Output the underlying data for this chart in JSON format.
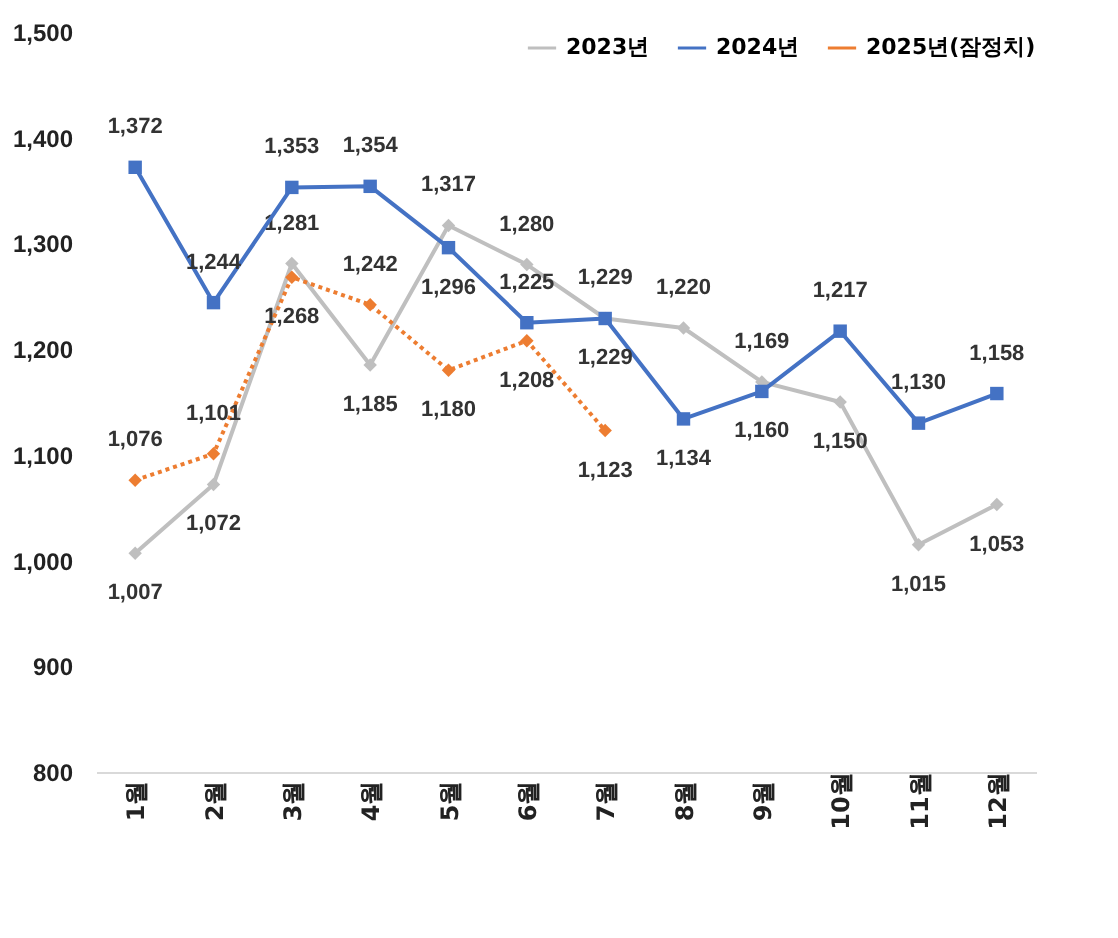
{
  "chart_data": {
    "type": "line",
    "categories": [
      "1월",
      "2월",
      "3월",
      "4월",
      "5월",
      "6월",
      "7월",
      "8월",
      "9월",
      "10월",
      "11월",
      "12월"
    ],
    "series": [
      {
        "name": "2023년",
        "color": "#bfbfbf",
        "marker": "diamond",
        "line_style": "solid",
        "values": [
          1007,
          1072,
          1281,
          1185,
          1317,
          1280,
          1229,
          1220,
          1169,
          1150,
          1015,
          1053
        ],
        "value_labels": [
          "1,007",
          "1,072",
          "1,281",
          "1,185",
          "1,317",
          "1,280",
          "1,229",
          "1,220",
          "1,169",
          "1,150",
          "1,015",
          "1,053"
        ]
      },
      {
        "name": "2024년",
        "color": "#4472c4",
        "marker": "square",
        "line_style": "solid",
        "values": [
          1372,
          1244,
          1353,
          1354,
          1296,
          1225,
          1229,
          1134,
          1160,
          1217,
          1130,
          1158
        ],
        "value_labels": [
          "1,372",
          "1,244",
          "1,353",
          "1,354",
          "1,296",
          "1,225",
          "1,229",
          "1,134",
          "1,160",
          "1,217",
          "1,130",
          "1,158"
        ]
      },
      {
        "name": "2025년(잠정치)",
        "color": "#ed7d31",
        "marker": "diamond",
        "line_style": "dotted",
        "values": [
          1076,
          1101,
          1268,
          1242,
          1180,
          1208,
          1123,
          null,
          null,
          null,
          null,
          null
        ],
        "value_labels": [
          "1,076",
          "1,101",
          "1,268",
          "1,242",
          "1,180",
          "1,208",
          "1,123",
          null,
          null,
          null,
          null,
          null
        ]
      }
    ],
    "ylim": [
      800,
      1500
    ],
    "yticks": [
      {
        "value": 800,
        "label": "800"
      },
      {
        "value": 900,
        "label": "900"
      },
      {
        "value": 1000,
        "label": "1,000"
      },
      {
        "value": 1100,
        "label": "1,100"
      },
      {
        "value": 1200,
        "label": "1,200"
      },
      {
        "value": 1300,
        "label": "1,300"
      },
      {
        "value": 1400,
        "label": "1,400"
      },
      {
        "value": 1500,
        "label": "1,500"
      }
    ],
    "grid": false,
    "legend": "top right"
  }
}
